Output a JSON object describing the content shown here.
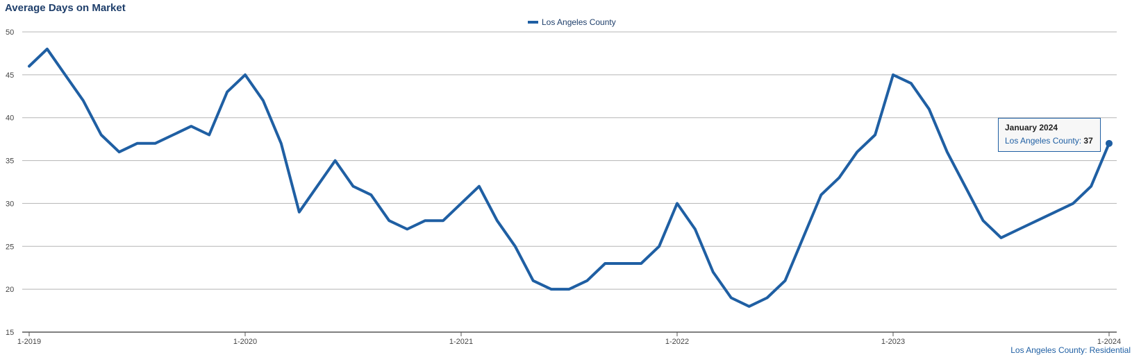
{
  "chart_data": {
    "type": "line",
    "title": "Average Days on Market",
    "xlabel": "",
    "ylabel": "",
    "ylim": [
      15,
      50
    ],
    "yticks": [
      15,
      20,
      25,
      30,
      35,
      40,
      45,
      50
    ],
    "xtick_labels": [
      "1-2019",
      "1-2020",
      "1-2021",
      "1-2022",
      "1-2023",
      "1-2024"
    ],
    "x_start": "2019-01",
    "x_end": "2024-01",
    "legend_position": "top-center",
    "grid": true,
    "series": [
      {
        "name": "Los Angeles County",
        "color": "#1f5fa3",
        "values": [
          46,
          48,
          45,
          42,
          38,
          36,
          37,
          37,
          38,
          39,
          38,
          43,
          45,
          42,
          37,
          29,
          32,
          35,
          32,
          31,
          28,
          27,
          28,
          28,
          30,
          32,
          28,
          25,
          21,
          20,
          20,
          21,
          23,
          23,
          23,
          25,
          30,
          27,
          22,
          19,
          18,
          19,
          21,
          26,
          31,
          33,
          36,
          38,
          45,
          44,
          41,
          36,
          32,
          28,
          26,
          27,
          28,
          29,
          30,
          32,
          37
        ]
      }
    ]
  },
  "tooltip": {
    "title": "January 2024",
    "series_label": "Los Angeles County:",
    "value": "37"
  },
  "credit": "Los Angeles County: Residential"
}
